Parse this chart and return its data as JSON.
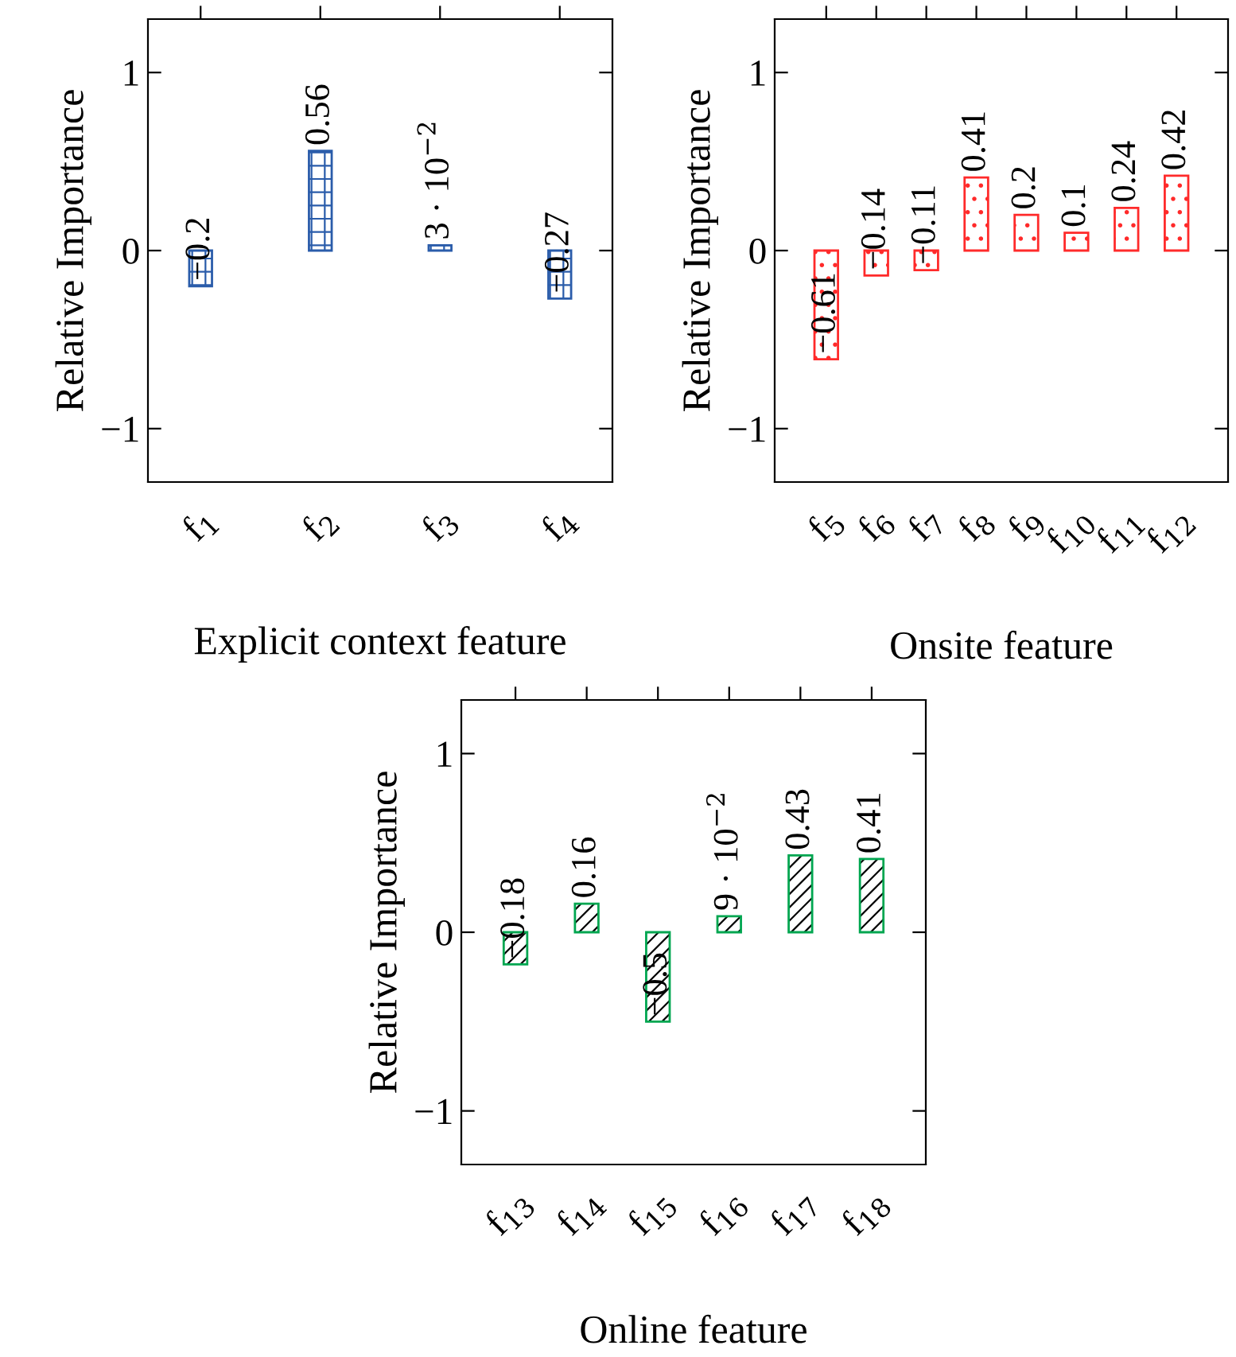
{
  "chart_data": [
    {
      "type": "bar",
      "xlabel": "Explicit context feature",
      "ylabel": "Relative Importance",
      "categories": [
        "f$_{1}$",
        "f$_{2}$",
        "f$_{3}$",
        "f$_{4}$"
      ],
      "series": [
        {
          "color": "#2a5caa",
          "values": [
            -0.2,
            0.56,
            0.03,
            -0.27
          ],
          "value_labels": [
            "−0.2",
            "0.56",
            "3 · 10$^{−2}$",
            "−0.27"
          ]
        }
      ],
      "ylim": [
        -1.3,
        1.3
      ],
      "yticks": [
        -1,
        0,
        1
      ],
      "grid": false,
      "legend": false
    },
    {
      "type": "bar",
      "xlabel": "Onsite feature",
      "ylabel": "Relative Importance",
      "categories": [
        "f$_{5}$",
        "f$_{6}$",
        "f$_{7}$",
        "f$_{8}$",
        "f$_{9}$",
        "f$_{10}$",
        "f$_{11}$",
        "f$_{12}$"
      ],
      "series": [
        {
          "color": "#ff2a2a",
          "values": [
            -0.61,
            -0.14,
            -0.11,
            0.41,
            0.2,
            0.1,
            0.24,
            0.42
          ],
          "value_labels": [
            "−0.61",
            "−0.14",
            "−0.11",
            "0.41",
            "0.2",
            "0.1",
            "0.24",
            "0.42"
          ]
        }
      ],
      "ylim": [
        -1.3,
        1.3
      ],
      "yticks": [
        -1,
        0,
        1
      ],
      "grid": false,
      "legend": false
    },
    {
      "type": "bar",
      "xlabel": "Online feature",
      "ylabel": "Relative Importance",
      "categories": [
        "f$_{13}$",
        "f$_{14}$",
        "f$_{15}$",
        "f$_{16}$",
        "f$_{17}$",
        "f$_{18}$"
      ],
      "series": [
        {
          "color": "#00a650",
          "values": [
            -0.18,
            0.16,
            -0.5,
            0.09,
            0.43,
            0.41
          ],
          "value_labels": [
            "−0.18",
            "0.16",
            "−0.5",
            "9 · 10$^{−2}$",
            "0.43",
            "0.41"
          ]
        }
      ],
      "ylim": [
        -1.3,
        1.3
      ],
      "yticks": [
        -1,
        0,
        1
      ],
      "grid": false,
      "legend": false
    }
  ]
}
